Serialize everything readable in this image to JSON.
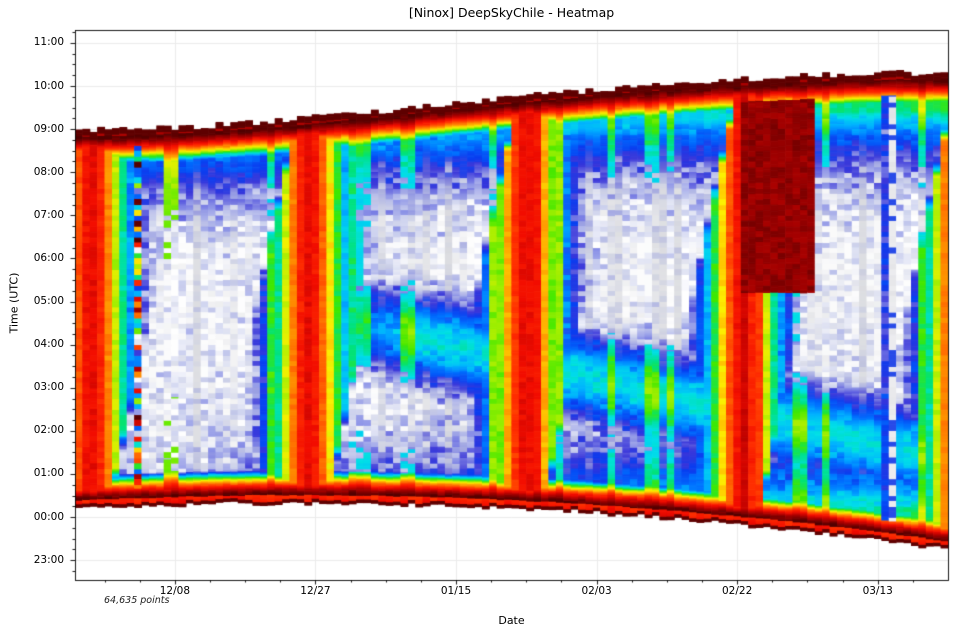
{
  "chart_data": {
    "type": "heatmap",
    "title": "[Ninox] DeepSkyChile - Heatmap",
    "xlabel": "Date",
    "ylabel": "Time (UTC)",
    "points_label": "64,635 points",
    "legend": "none",
    "grid": "on",
    "x_axis": {
      "unit": "days-from-left-edge",
      "range": [
        0,
        118
      ],
      "major_ticks": [
        {
          "day": 13.5,
          "label": "12/08"
        },
        {
          "day": 32.5,
          "label": "12/27"
        },
        {
          "day": 51.5,
          "label": "01/15"
        },
        {
          "day": 70.5,
          "label": "02/03"
        },
        {
          "day": 89.5,
          "label": "02/22"
        },
        {
          "day": 108.5,
          "label": "03/13"
        }
      ],
      "minor_step_days": 4.75
    },
    "y_axis": {
      "unit": "hours-since-previous-noon-UTC",
      "range": [
        10.54,
        23.3
      ],
      "major_ticks": [
        {
          "t": 11,
          "label": "23:00"
        },
        {
          "t": 12,
          "label": "00:00"
        },
        {
          "t": 13,
          "label": "01:00"
        },
        {
          "t": 14,
          "label": "02:00"
        },
        {
          "t": 15,
          "label": "03:00"
        },
        {
          "t": 16,
          "label": "04:00"
        },
        {
          "t": 17,
          "label": "05:00"
        },
        {
          "t": 18,
          "label": "06:00"
        },
        {
          "t": 19,
          "label": "07:00"
        },
        {
          "t": 20,
          "label": "08:00"
        },
        {
          "t": 21,
          "label": "09:00"
        },
        {
          "t": 22,
          "label": "10:00"
        },
        {
          "t": 23,
          "label": "11:00"
        }
      ],
      "minor_step_hours": 0.25
    },
    "colormap": [
      [
        0.0,
        "#520000"
      ],
      [
        0.055,
        "#8f0000"
      ],
      [
        0.115,
        "#c80400"
      ],
      [
        0.17,
        "#f20d00"
      ],
      [
        0.23,
        "#ff2e00"
      ],
      [
        0.3,
        "#ff6d00"
      ],
      [
        0.37,
        "#ffb000"
      ],
      [
        0.43,
        "#fdf000"
      ],
      [
        0.49,
        "#a6ef00"
      ],
      [
        0.55,
        "#3fe800"
      ],
      [
        0.61,
        "#00e27c"
      ],
      [
        0.67,
        "#00dfe8"
      ],
      [
        0.73,
        "#00b2ff"
      ],
      [
        0.79,
        "#0070ff"
      ],
      [
        0.85,
        "#083cf0"
      ],
      [
        0.895,
        "#3834da"
      ],
      [
        0.93,
        "#8b92e8"
      ],
      [
        0.965,
        "#ced3f0"
      ],
      [
        1.0,
        "#ffffff"
      ]
    ],
    "grid_color": "#ebebeb",
    "sky_model": {
      "night": {
        "bottom_edge": {
          "peak_t": 12.33,
          "peak_day": 30,
          "quad": 0.00014,
          "twilight_offset": 0.78,
          "ramp": 0.6
        },
        "top_edge": {
          "start_t": 20.97,
          "rise": 1.33,
          "bump": 0.1,
          "twilight_offset": 0.85,
          "ramp": 0.72
        },
        "edge_jitter": 0.11,
        "twilight_exponent": 1.6,
        "day_u_near": 0.21,
        "day_u_far": 0.04,
        "bottom_cap_h": 0.07,
        "top_cap_h": 0.14,
        "top_cap2_h": 0.26
      },
      "moon": {
        "new_moon_day": 17.2,
        "synodic_days": 29.35,
        "transit_start_t": 4.7,
        "transit_step_h_per_day": 0.818,
        "half_arc_h": 6.45,
        "rise_set_ramp_h": 0.45,
        "illum_exponent": 4,
        "strength": 0.82,
        "base": 0.02,
        "waxing_waning_asym": 0.12
      },
      "dawn_glow": {
        "amp_base": 0.18,
        "amp_gain": 0.24,
        "amp_exp": 1.6,
        "tau_h": 0.85
      },
      "dusk_glow": {
        "amp_base": 0.05,
        "amp_gain": 0.38,
        "amp_exp": 2.2,
        "tau_h": 1.1
      },
      "sidereal_band": {
        "t_at_day70": 15.2,
        "drift_t_per_day": -0.04,
        "width_h": 0.9,
        "strength": 0.33,
        "fade_in_day": 26,
        "fade_in_span": 20
      },
      "noise": {
        "row_amp": 0.05,
        "mid_extra_amp": 0.06,
        "cloud_threshold": 0.64,
        "cloud_amp": 0.7,
        "bright_day_threshold": 0.87
      },
      "anomalies": [
        {
          "type": "noisy_column",
          "day": 8
        },
        {
          "type": "bright_column",
          "day": 12
        },
        {
          "type": "bright_column",
          "day": 13
        },
        {
          "type": "blue_column",
          "day": 109
        },
        {
          "type": "white_speckled_column",
          "day": 110
        },
        {
          "type": "bright_maroon_morning",
          "day_range": [
            90,
            99.5
          ],
          "t_min": 17.2,
          "u": 0.04
        }
      ]
    }
  }
}
